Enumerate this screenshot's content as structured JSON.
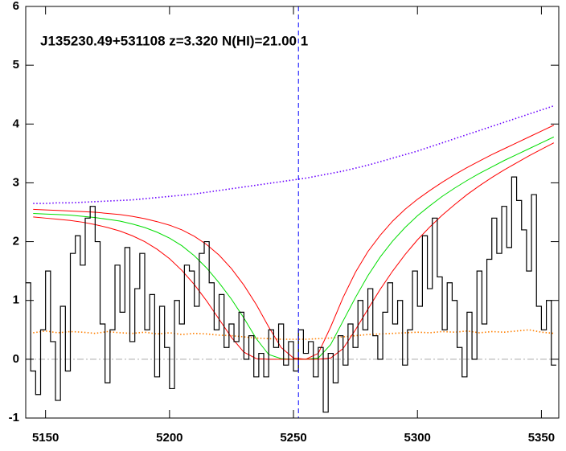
{
  "chart_data": {
    "type": "spectrum",
    "title": "J135230.49+531108 z=3.320 N(HI)=21.00 1",
    "xlim": [
      5142,
      5357
    ],
    "ylim": [
      -1,
      6
    ],
    "xticks": [
      5150,
      5200,
      5250,
      5300,
      5350
    ],
    "yticks": [
      -1,
      0,
      1,
      2,
      3,
      4,
      5,
      6
    ],
    "hline": {
      "value": 0,
      "color": "#aaaaaa",
      "style": "dashdot"
    },
    "vline": {
      "value": 5252,
      "color": "#0000ff",
      "style": "dashed"
    },
    "spectrum": {
      "color": "#000000",
      "bin_width": 2,
      "x": [
        5143,
        5145,
        5147,
        5149,
        5151,
        5153,
        5155,
        5157,
        5159,
        5161,
        5163,
        5165,
        5167,
        5169,
        5171,
        5173,
        5175,
        5177,
        5179,
        5181,
        5183,
        5185,
        5187,
        5189,
        5191,
        5193,
        5195,
        5197,
        5199,
        5201,
        5203,
        5205,
        5207,
        5209,
        5211,
        5213,
        5215,
        5217,
        5219,
        5221,
        5223,
        5225,
        5227,
        5229,
        5231,
        5233,
        5235,
        5237,
        5239,
        5241,
        5243,
        5245,
        5247,
        5249,
        5251,
        5253,
        5255,
        5257,
        5259,
        5261,
        5263,
        5265,
        5267,
        5269,
        5271,
        5273,
        5275,
        5277,
        5279,
        5281,
        5283,
        5285,
        5287,
        5289,
        5291,
        5293,
        5295,
        5297,
        5299,
        5301,
        5303,
        5305,
        5307,
        5309,
        5311,
        5313,
        5315,
        5317,
        5319,
        5321,
        5323,
        5325,
        5327,
        5329,
        5331,
        5333,
        5335,
        5337,
        5339,
        5341,
        5343,
        5345,
        5347,
        5349,
        5351,
        5353,
        5355
      ],
      "values": [
        1.3,
        -0.2,
        -0.6,
        0.5,
        1.5,
        0.3,
        -0.7,
        0.9,
        -0.2,
        1.8,
        2.1,
        1.6,
        2.4,
        2.6,
        2.0,
        0.6,
        -0.4,
        0.5,
        1.6,
        0.8,
        1.9,
        0.3,
        1.2,
        1.8,
        0.5,
        1.1,
        -0.3,
        0.9,
        0.2,
        -0.5,
        1.0,
        0.6,
        1.6,
        1.5,
        0.9,
        1.8,
        2.0,
        1.3,
        0.5,
        1.1,
        0.2,
        0.6,
        0.3,
        0.8,
        0.0,
        0.4,
        -0.3,
        0.1,
        -0.3,
        0.5,
        0.2,
        0.6,
        -0.1,
        0.3,
        -0.2,
        0.5,
        0.1,
        0.3,
        -0.3,
        0.2,
        -0.9,
        0.1,
        -0.4,
        0.4,
        -0.1,
        0.6,
        0.2,
        1.0,
        0.5,
        1.2,
        0.4,
        0.0,
        0.8,
        1.3,
        0.6,
        1.0,
        -0.1,
        0.5,
        1.5,
        0.9,
        2.1,
        1.2,
        2.4,
        1.4,
        0.5,
        1.3,
        1.0,
        0.2,
        -0.3,
        0.8,
        0.0,
        1.5,
        0.6,
        1.7,
        2.4,
        1.8,
        2.6,
        1.9,
        3.1,
        2.7,
        2.2,
        1.5,
        2.8,
        0.9,
        0.5,
        1.0,
        -0.1
      ]
    },
    "x": [
      5145,
      5150,
      5155,
      5160,
      5165,
      5170,
      5175,
      5180,
      5185,
      5190,
      5195,
      5200,
      5205,
      5210,
      5215,
      5220,
      5225,
      5230,
      5235,
      5240,
      5245,
      5250,
      5255,
      5260,
      5265,
      5270,
      5275,
      5280,
      5285,
      5290,
      5295,
      5300,
      5305,
      5310,
      5315,
      5320,
      5325,
      5330,
      5335,
      5340,
      5345,
      5350,
      5355
    ],
    "series": [
      {
        "color": "#ff7f00",
        "style": "dotted",
        "values": [
          0.45,
          0.48,
          0.45,
          0.47,
          0.46,
          0.44,
          0.47,
          0.45,
          0.44,
          0.46,
          0.43,
          0.45,
          0.42,
          0.44,
          0.43,
          0.41,
          0.4,
          0.38,
          0.36,
          0.35,
          0.34,
          0.34,
          0.34,
          0.35,
          0.36,
          0.38,
          0.4,
          0.42,
          0.43,
          0.44,
          0.45,
          0.46,
          0.45,
          0.47,
          0.46,
          0.48,
          0.45,
          0.47,
          0.46,
          0.48,
          0.5,
          0.46,
          0.44
        ]
      },
      {
        "color": "#6a00ff",
        "style": "dotted",
        "values": [
          2.65,
          2.65,
          2.66,
          2.66,
          2.67,
          2.68,
          2.69,
          2.7,
          2.71,
          2.73,
          2.75,
          2.77,
          2.79,
          2.81,
          2.84,
          2.87,
          2.9,
          2.93,
          2.96,
          2.99,
          3.02,
          3.05,
          3.08,
          3.12,
          3.16,
          3.2,
          3.25,
          3.3,
          3.36,
          3.42,
          3.48,
          3.54,
          3.61,
          3.68,
          3.75,
          3.82,
          3.89,
          3.96,
          4.03,
          4.1,
          4.17,
          4.24,
          4.31
        ]
      },
      {
        "color": "#ff0000",
        "style": "solid",
        "values": [
          2.55,
          2.54,
          2.53,
          2.52,
          2.51,
          2.5,
          2.48,
          2.46,
          2.43,
          2.39,
          2.34,
          2.28,
          2.2,
          2.09,
          1.95,
          1.77,
          1.54,
          1.26,
          0.93,
          0.55,
          0.2,
          0.02,
          0,
          0.1,
          0.55,
          1.05,
          1.48,
          1.83,
          2.11,
          2.35,
          2.55,
          2.72,
          2.87,
          3.01,
          3.14,
          3.26,
          3.37,
          3.48,
          3.58,
          3.68,
          3.78,
          3.88,
          3.98
        ]
      },
      {
        "color": "#00dd00",
        "style": "solid",
        "values": [
          2.48,
          2.47,
          2.46,
          2.45,
          2.43,
          2.41,
          2.38,
          2.35,
          2.3,
          2.24,
          2.16,
          2.06,
          1.93,
          1.76,
          1.55,
          1.3,
          1.02,
          0.7,
          0.35,
          0.08,
          0.01,
          0,
          0,
          0.02,
          0.25,
          0.65,
          1.05,
          1.42,
          1.74,
          2.01,
          2.24,
          2.44,
          2.61,
          2.77,
          2.91,
          3.04,
          3.16,
          3.27,
          3.38,
          3.48,
          3.58,
          3.68,
          3.78
        ]
      },
      {
        "color": "#ff0000",
        "style": "solid",
        "values": [
          2.42,
          2.4,
          2.38,
          2.36,
          2.33,
          2.29,
          2.24,
          2.18,
          2.1,
          2.0,
          1.87,
          1.71,
          1.51,
          1.27,
          0.99,
          0.68,
          0.37,
          0.12,
          0.01,
          0,
          0,
          0,
          0,
          0,
          0.02,
          0.18,
          0.5,
          0.85,
          1.19,
          1.5,
          1.78,
          2.03,
          2.25,
          2.45,
          2.63,
          2.8,
          2.95,
          3.09,
          3.22,
          3.34,
          3.46,
          3.57,
          3.68
        ]
      }
    ]
  }
}
